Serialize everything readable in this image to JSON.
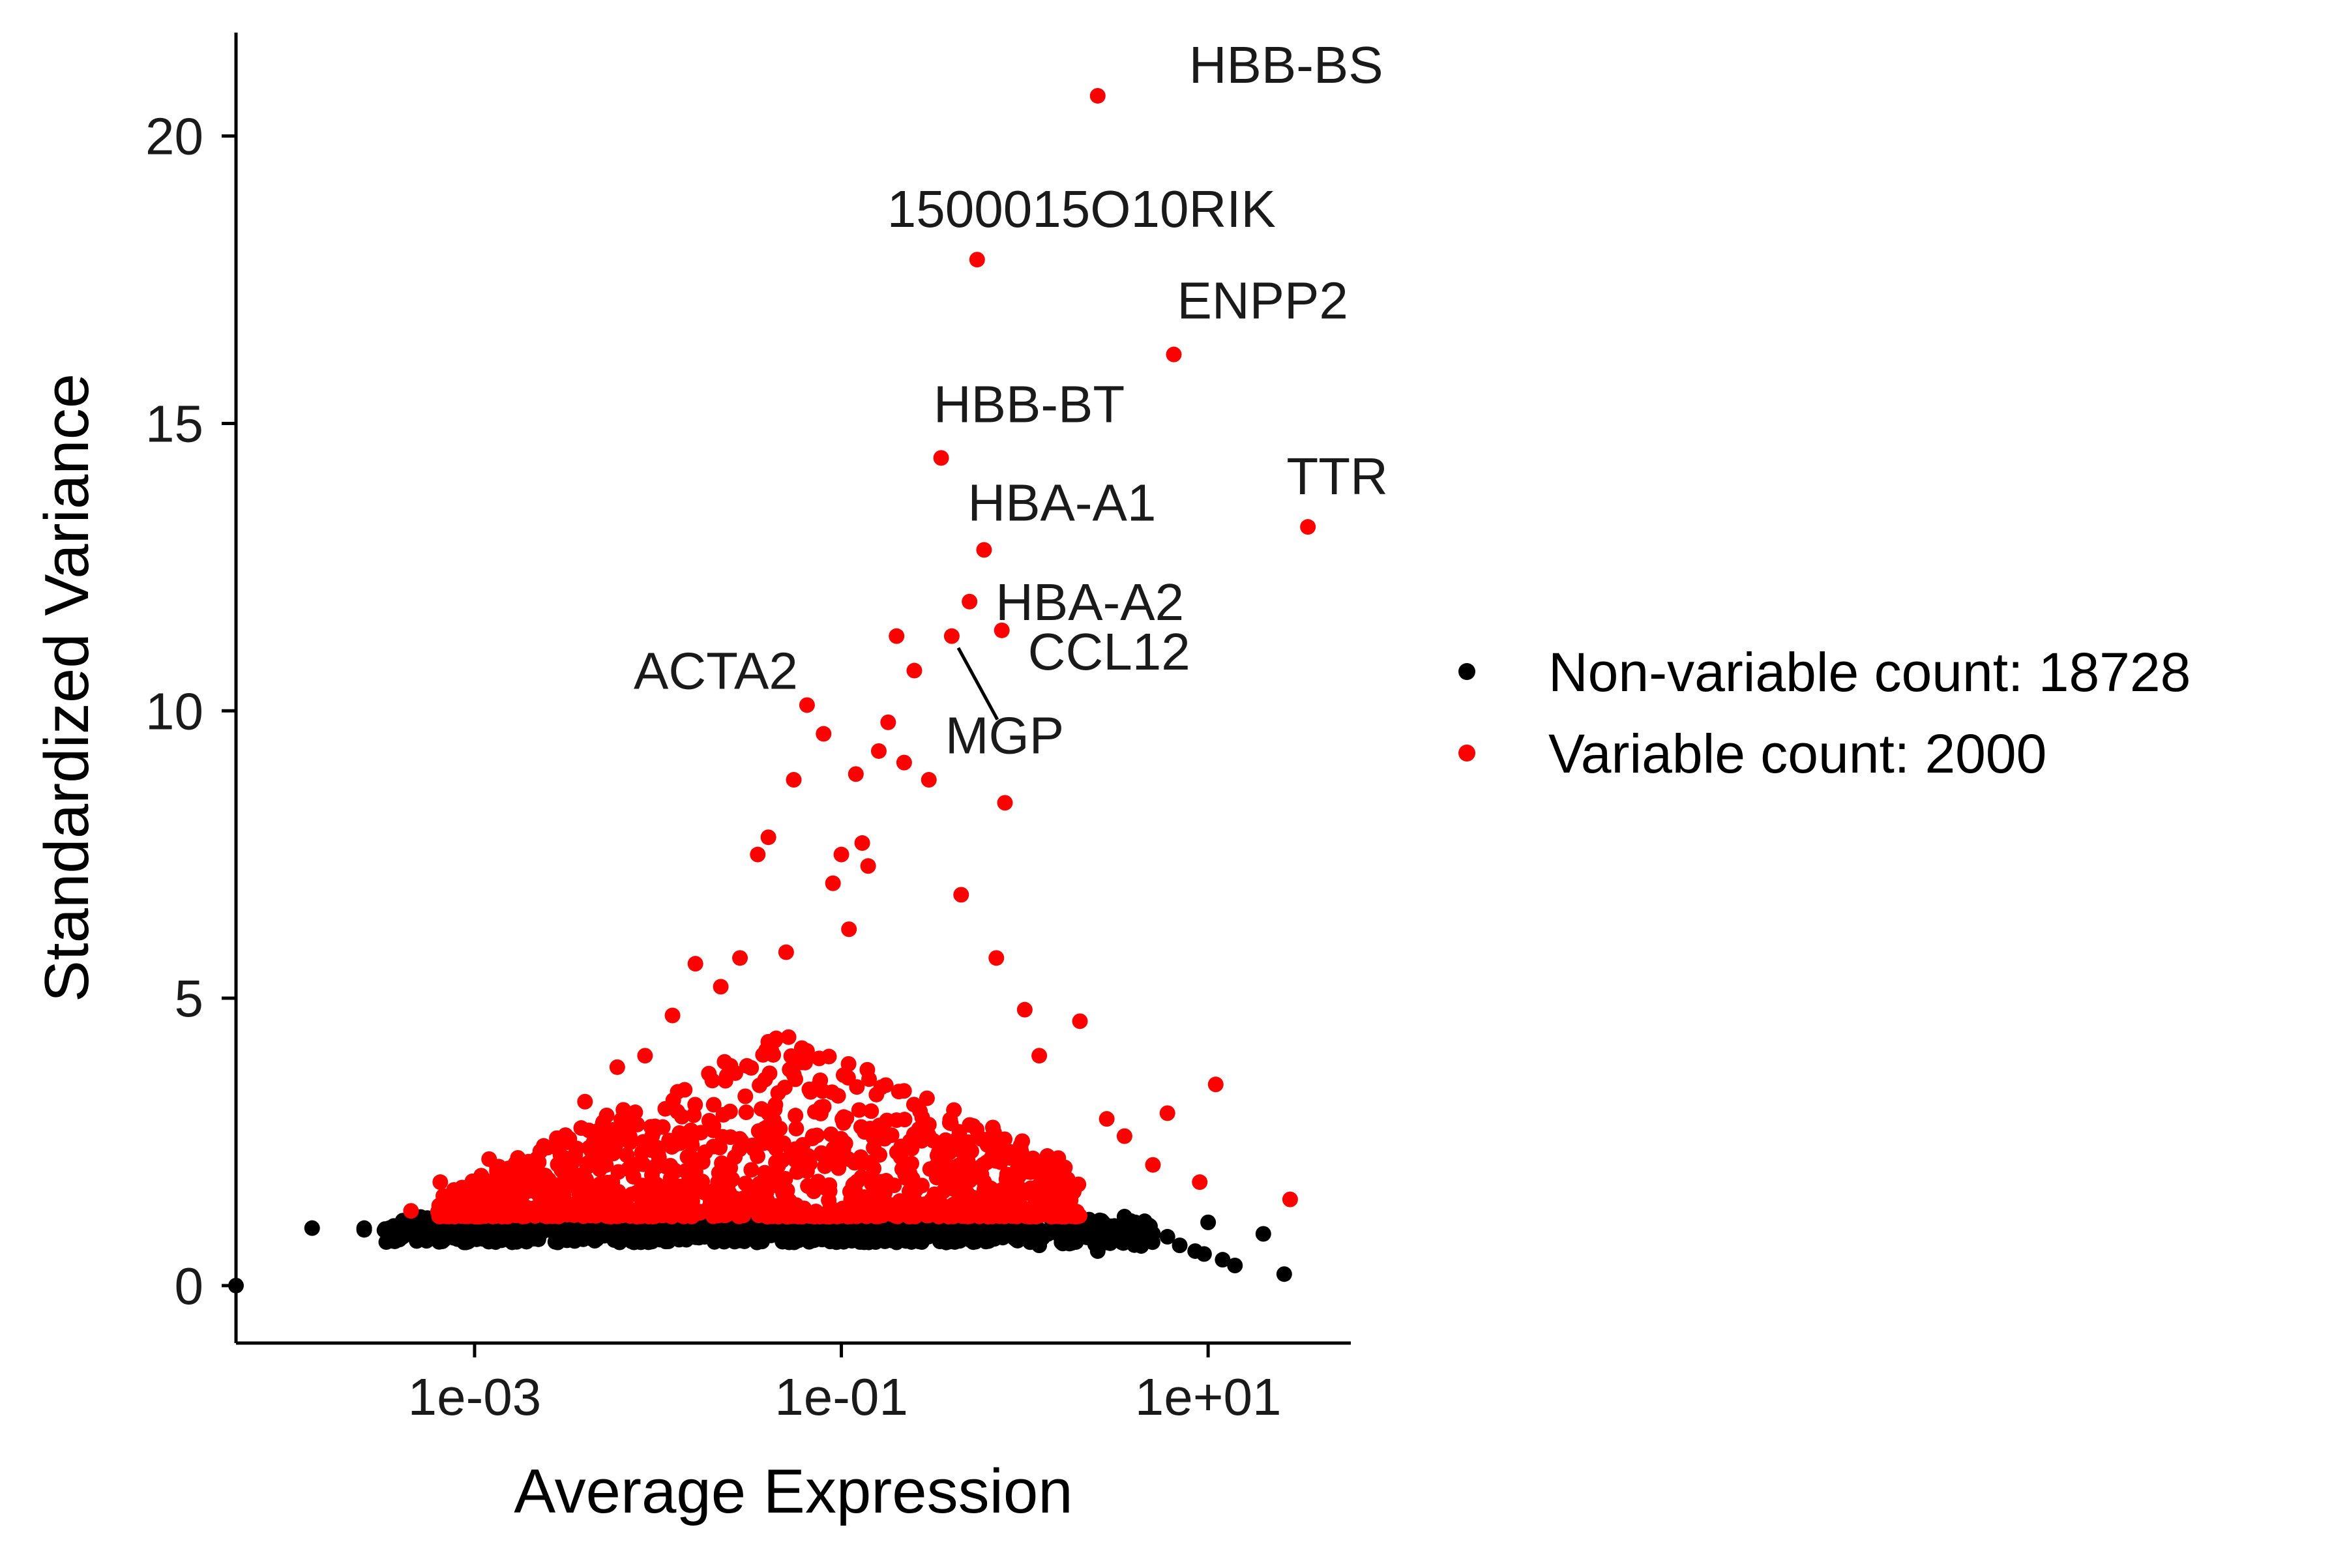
{
  "chart_data": {
    "type": "scatter",
    "xlabel": "Average Expression",
    "ylabel": "Standardized Variance",
    "x_scale": "log10",
    "xlim": [
      5e-05,
      60
    ],
    "ylim": [
      -1,
      21.8
    ],
    "x_ticks": [
      {
        "value": 0.001,
        "label": "1e-03"
      },
      {
        "value": 0.1,
        "label": "1e-01"
      },
      {
        "value": 10,
        "label": "1e+01"
      }
    ],
    "y_ticks": [
      {
        "value": 0,
        "label": "0"
      },
      {
        "value": 5,
        "label": "5"
      },
      {
        "value": 10,
        "label": "10"
      },
      {
        "value": 15,
        "label": "15"
      },
      {
        "value": 20,
        "label": "20"
      }
    ],
    "grid": false,
    "legend_position": "right",
    "colors": {
      "non_variable": "#000000",
      "variable": "#ff0000",
      "axis": "#000000",
      "label": "#1a1a1a"
    },
    "series": [
      {
        "name": "Non-variable count: 18728",
        "color": "#000000",
        "points": [
          [
            5e-05,
            0.0
          ],
          [
            0.00013,
            1.0
          ],
          [
            0.00025,
            0.97
          ],
          [
            0.00025,
            1.0
          ],
          [
            0.0004,
            0.95
          ],
          [
            0.0004,
            1.0
          ],
          [
            0.0005,
            0.95
          ],
          [
            0.0006,
            1.0
          ],
          [
            0.0008,
            0.9
          ],
          [
            0.001,
            0.95
          ],
          [
            0.0015,
            0.9
          ],
          [
            0.002,
            1.0
          ],
          [
            0.003,
            0.85
          ],
          [
            0.005,
            0.95
          ],
          [
            0.008,
            1.05
          ],
          [
            0.012,
            0.9
          ],
          [
            0.02,
            1.0
          ],
          [
            0.03,
            0.85
          ],
          [
            0.05,
            0.95
          ],
          [
            0.08,
            0.9
          ],
          [
            0.12,
            1.0
          ],
          [
            0.2,
            0.85
          ],
          [
            0.3,
            0.95
          ],
          [
            0.5,
            0.8
          ],
          [
            0.8,
            0.9
          ],
          [
            1.2,
            0.7
          ],
          [
            1.8,
            0.8
          ],
          [
            2.5,
            0.6
          ],
          [
            3.5,
            1.2
          ],
          [
            4.0,
            1.1
          ],
          [
            5.0,
            0.9
          ],
          [
            6.0,
            0.85
          ],
          [
            7.0,
            0.7
          ],
          [
            8.5,
            0.6
          ],
          [
            9.5,
            0.55
          ],
          [
            10.0,
            1.1
          ],
          [
            12.0,
            0.45
          ],
          [
            14.0,
            0.35
          ],
          [
            20.0,
            0.9
          ],
          [
            26.0,
            0.2
          ]
        ]
      },
      {
        "name": "Variable count: 2000",
        "color": "#ff0000",
        "points": [
          [
            0.00045,
            1.3
          ],
          [
            0.00065,
            1.8
          ],
          [
            0.0012,
            2.2
          ],
          [
            0.0018,
            2.0
          ],
          [
            0.0025,
            2.4
          ],
          [
            0.004,
            3.2
          ],
          [
            0.006,
            3.8
          ],
          [
            0.0085,
            4.0
          ],
          [
            0.012,
            4.7
          ],
          [
            0.016,
            5.6
          ],
          [
            0.022,
            5.2
          ],
          [
            0.028,
            5.7
          ],
          [
            0.035,
            7.5
          ],
          [
            0.04,
            7.8
          ],
          [
            0.05,
            5.8
          ],
          [
            0.055,
            8.8
          ],
          [
            0.065,
            10.1
          ],
          [
            0.08,
            9.6
          ],
          [
            0.09,
            7.0
          ],
          [
            0.1,
            7.5
          ],
          [
            0.11,
            6.2
          ],
          [
            0.12,
            8.9
          ],
          [
            0.13,
            7.7
          ],
          [
            0.14,
            7.3
          ],
          [
            0.16,
            9.3
          ],
          [
            0.18,
            9.8
          ],
          [
            0.2,
            11.3
          ],
          [
            0.22,
            9.1
          ],
          [
            0.25,
            10.7
          ],
          [
            0.3,
            8.8
          ],
          [
            0.35,
            14.4
          ],
          [
            0.4,
            11.3
          ],
          [
            0.45,
            6.8
          ],
          [
            0.5,
            11.9
          ],
          [
            0.6,
            12.8
          ],
          [
            0.7,
            5.7
          ],
          [
            0.75,
            11.4
          ],
          [
            0.78,
            8.4
          ],
          [
            1.0,
            4.8
          ],
          [
            1.2,
            4.0
          ],
          [
            2.0,
            4.6
          ],
          [
            2.5,
            20.7
          ],
          [
            2.8,
            2.9
          ],
          [
            3.5,
            2.6
          ],
          [
            5.0,
            2.1
          ],
          [
            6.0,
            3.0
          ],
          [
            6.5,
            16.2
          ],
          [
            9.0,
            1.8
          ],
          [
            11.0,
            3.5
          ],
          [
            28.0,
            1.5
          ],
          [
            35.0,
            13.2
          ],
          [
            0.001,
            1.6
          ],
          [
            0.003,
            2.0
          ],
          [
            0.006,
            2.5
          ],
          [
            0.01,
            2.3
          ],
          [
            0.02,
            2.7
          ],
          [
            0.04,
            3.0
          ],
          [
            0.07,
            2.6
          ],
          [
            0.15,
            2.4
          ],
          [
            0.3,
            2.8
          ],
          [
            0.8,
            2.3
          ],
          [
            1.5,
            1.6
          ],
          [
            0.55,
            17.85
          ]
        ]
      }
    ],
    "annotations": [
      {
        "text": "HBB-BS",
        "x": 2.5,
        "y": 20.7
      },
      {
        "text": "1500015O10RIK",
        "x": 0.55,
        "y": 17.85
      },
      {
        "text": "ENPP2",
        "x": 6.5,
        "y": 16.2
      },
      {
        "text": "HBB-BT",
        "x": 0.35,
        "y": 14.4
      },
      {
        "text": "TTR",
        "x": 35.0,
        "y": 13.2
      },
      {
        "text": "HBA-A1",
        "x": 0.6,
        "y": 12.8
      },
      {
        "text": "HBA-A2",
        "x": 0.5,
        "y": 11.9
      },
      {
        "text": "CCL12",
        "x": 0.75,
        "y": 11.4
      },
      {
        "text": "ACTA2",
        "x": 0.065,
        "y": 10.1
      },
      {
        "text": "MGP",
        "x": 0.4,
        "y": 11.3
      }
    ]
  }
}
